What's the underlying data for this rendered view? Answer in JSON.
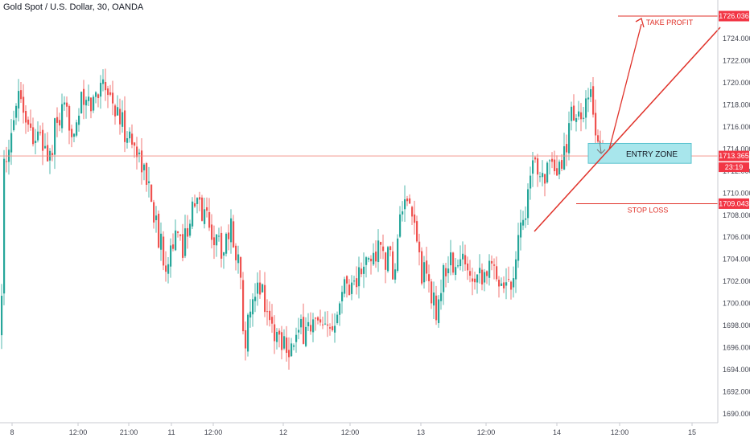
{
  "header": {
    "symbol_title": "Gold Spot / U.S. Dollar, 30, OANDA"
  },
  "colors": {
    "up": "#26a69a",
    "down": "#ef5350",
    "annotation": "#e0322a",
    "zone_fill": "#a8e6ec",
    "zone_border": "#5bc4cf",
    "price_line": "#f28b82",
    "axis_text": "#434651"
  },
  "chart_data": {
    "type": "candlestick",
    "title": "Gold Spot / U.S. Dollar, 30, OANDA",
    "ylim": [
      1689,
      1727
    ],
    "x_ticks": [
      "8",
      "12:00",
      "21:00",
      "11",
      "12:00",
      "12",
      "12:00",
      "13",
      "12:00",
      "14",
      "12:00",
      "15"
    ],
    "y_ticks": [
      "1690.000",
      "1692.000",
      "1694.000",
      "1696.000",
      "1698.000",
      "1700.000",
      "1702.000",
      "1704.000",
      "1706.000",
      "1708.000",
      "1710.000",
      "1712.000",
      "1714.000",
      "1716.000",
      "1718.000",
      "1720.000",
      "1722.000",
      "1724.000"
    ],
    "current_price": {
      "label": "1713.365",
      "value": 1713.365,
      "countdown": "23:19"
    },
    "take_profit": {
      "label": "TAKE PROFIT",
      "price_label": "1726.036",
      "value": 1726.036
    },
    "stop_loss": {
      "label": "STOP LOSS",
      "price_label": "1709.043",
      "value": 1709.043
    },
    "entry_zone": {
      "label": "ENTRY ZONE",
      "top": 1714.5,
      "bottom": 1712.7
    },
    "close_path": [
      [
        0,
        1697
      ],
      [
        3,
        1712
      ],
      [
        8,
        1712
      ],
      [
        15,
        1716
      ],
      [
        20,
        1720
      ],
      [
        28,
        1718
      ],
      [
        35,
        1716
      ],
      [
        45,
        1715
      ],
      [
        55,
        1714
      ],
      [
        62,
        1713
      ],
      [
        68,
        1716
      ],
      [
        78,
        1717
      ],
      [
        90,
        1716
      ],
      [
        100,
        1718
      ],
      [
        112,
        1718
      ],
      [
        120,
        1719
      ],
      [
        126,
        1721
      ],
      [
        135,
        1719
      ],
      [
        145,
        1717
      ],
      [
        152,
        1716
      ],
      [
        160,
        1715
      ],
      [
        168,
        1714
      ],
      [
        175,
        1713
      ],
      [
        180,
        1711
      ],
      [
        187,
        1710
      ],
      [
        195,
        1706
      ],
      [
        205,
        1704
      ],
      [
        215,
        1706
      ],
      [
        225,
        1705
      ],
      [
        235,
        1708
      ],
      [
        245,
        1709
      ],
      [
        255,
        1708
      ],
      [
        265,
        1706
      ],
      [
        275,
        1705
      ],
      [
        285,
        1707
      ],
      [
        295,
        1704
      ],
      [
        303,
        1697
      ],
      [
        312,
        1699
      ],
      [
        322,
        1702
      ],
      [
        332,
        1699
      ],
      [
        342,
        1697
      ],
      [
        352,
        1697
      ],
      [
        360,
        1696
      ],
      [
        370,
        1697
      ],
      [
        380,
        1698
      ],
      [
        392,
        1698
      ],
      [
        402,
        1697
      ],
      [
        412,
        1698
      ],
      [
        420,
        1701
      ],
      [
        430,
        1702
      ],
      [
        440,
        1702
      ],
      [
        450,
        1703
      ],
      [
        460,
        1704
      ],
      [
        470,
        1705
      ],
      [
        480,
        1704
      ],
      [
        490,
        1703
      ],
      [
        498,
        1709
      ],
      [
        506,
        1708
      ],
      [
        515,
        1707
      ],
      [
        522,
        1703
      ],
      [
        532,
        1702
      ],
      [
        540,
        1699
      ],
      [
        548,
        1702
      ],
      [
        556,
        1704
      ],
      [
        566,
        1703
      ],
      [
        575,
        1704
      ],
      [
        585,
        1703
      ],
      [
        595,
        1703
      ],
      [
        605,
        1703
      ],
      [
        615,
        1703
      ],
      [
        625,
        1702
      ],
      [
        635,
        1702
      ],
      [
        642,
        1706
      ],
      [
        650,
        1708
      ],
      [
        658,
        1711
      ],
      [
        666,
        1713
      ],
      [
        674,
        1712
      ],
      [
        682,
        1712
      ],
      [
        690,
        1711
      ],
      [
        698,
        1713
      ],
      [
        706,
        1716
      ],
      [
        714,
        1718
      ],
      [
        720,
        1716
      ],
      [
        726,
        1717
      ],
      [
        732,
        1719
      ],
      [
        738,
        1716
      ],
      [
        744,
        1714.5
      ],
      [
        748,
        1713.4
      ]
    ]
  }
}
